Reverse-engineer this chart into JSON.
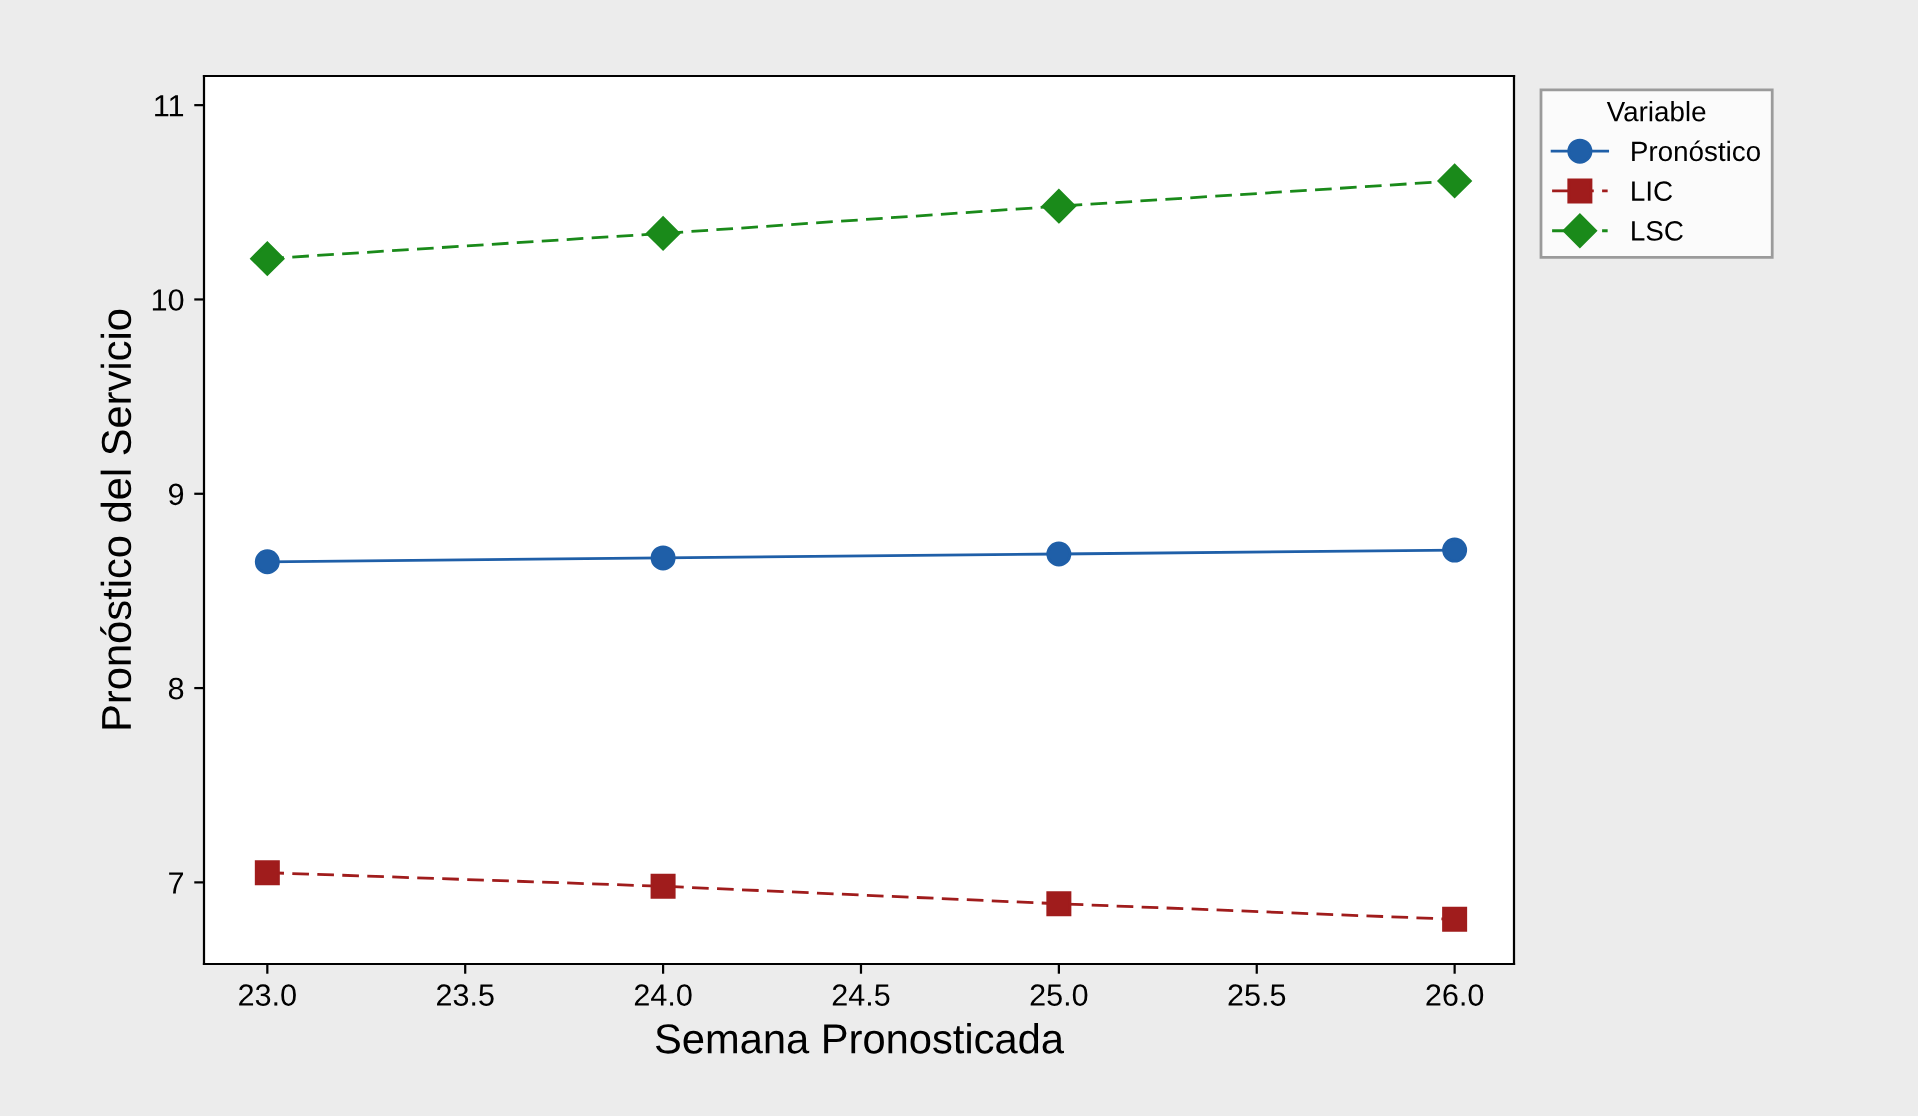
{
  "chart_data": {
    "type": "line",
    "xlabel": "Semana Pronosticada",
    "ylabel": "Pronóstico del Servicio",
    "legend_title": "Variable",
    "legend": "right",
    "x": [
      23,
      24,
      25,
      26
    ],
    "series": [
      {
        "name": "Pronóstico",
        "color": "#1f5fa8",
        "values": [
          8.65,
          8.67,
          8.69,
          8.71
        ],
        "marker": "circle",
        "line_style": "solid"
      },
      {
        "name": "LIC",
        "color": "#a01c1c",
        "values": [
          7.05,
          6.98,
          6.89,
          6.81
        ],
        "marker": "square",
        "line_style": "dashed"
      },
      {
        "name": "LSC",
        "color": "#1a8a1a",
        "values": [
          10.21,
          10.34,
          10.48,
          10.61
        ],
        "marker": "diamond",
        "line_style": "dashed"
      }
    ],
    "xlim": [
      22.84,
      26.15
    ],
    "xticks": [
      {
        "value": 23,
        "label": "23.0"
      },
      {
        "value": 23.5,
        "label": "23.5"
      },
      {
        "value": 24,
        "label": "24.0"
      },
      {
        "value": 24.5,
        "label": "24.5"
      },
      {
        "value": 25,
        "label": "25.0"
      },
      {
        "value": 25.5,
        "label": "25.5"
      },
      {
        "value": 26,
        "label": "26.0"
      }
    ],
    "ylim": [
      6.58,
      11.15
    ],
    "yticks": [
      7,
      8,
      9,
      10,
      11
    ],
    "grid": false
  }
}
